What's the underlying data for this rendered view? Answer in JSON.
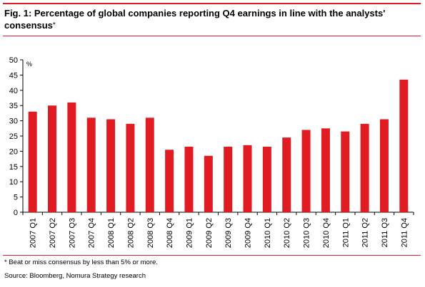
{
  "figure": {
    "title_main": "Fig. 1:  Percentage of global companies reporting Q4 earnings in line with the analysts' consensus",
    "title_marker": "*",
    "footnote": "* Beat or miss consensus by less than 5% or more.",
    "source": "Source: Bloomberg, Nomura Strategy research"
  },
  "colors": {
    "bar": "#e11b22",
    "rule": "#e11b22",
    "axis": "#000000"
  },
  "chart_data": {
    "type": "bar",
    "title": "",
    "xlabel": "",
    "ylabel": "%",
    "ylim": [
      0,
      50
    ],
    "yticks": [
      0,
      5,
      10,
      15,
      20,
      25,
      30,
      35,
      40,
      45,
      50
    ],
    "grid": false,
    "legend": "none",
    "categories": [
      "2007 Q1",
      "2007 Q2",
      "2007 Q3",
      "2007 Q4",
      "2008 Q1",
      "2008 Q2",
      "2008 Q3",
      "2008 Q4",
      "2009 Q1",
      "2009 Q2",
      "2009 Q3",
      "2009 Q4",
      "2010 Q1",
      "2010 Q2",
      "2010 Q3",
      "2010 Q4",
      "2011 Q1",
      "2011 Q2",
      "2011 Q3",
      "2011 Q4"
    ],
    "values": [
      33,
      35,
      36,
      31,
      30.5,
      29,
      31,
      20.5,
      21.5,
      18.5,
      21.5,
      22,
      21.5,
      24.5,
      27,
      27.5,
      26.5,
      29,
      30.5,
      43.5
    ]
  }
}
